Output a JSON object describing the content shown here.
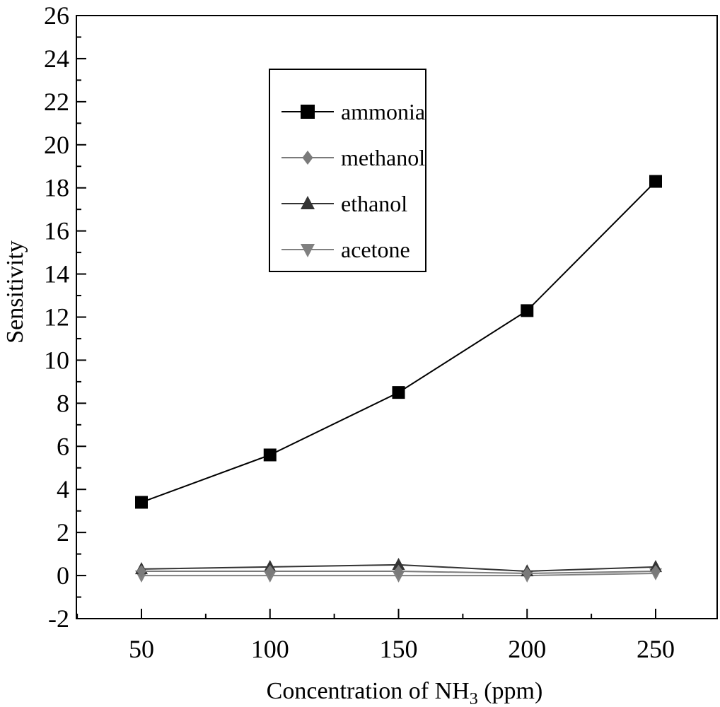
{
  "chart_data": {
    "type": "line",
    "xlabel_main": "Concentration of NH",
    "xlabel_sub": "3",
    "xlabel_tail": " (ppm)",
    "ylabel": "Sensitivity",
    "x": [
      50,
      100,
      150,
      200,
      250
    ],
    "xticks": [
      50,
      100,
      150,
      200,
      250
    ],
    "yticks": [
      -2,
      0,
      2,
      4,
      6,
      8,
      10,
      12,
      14,
      16,
      18,
      20,
      22,
      24,
      26
    ],
    "xlim": [
      25,
      275
    ],
    "ylim": [
      -2,
      26
    ],
    "grid": false,
    "legend_position": "top-center",
    "series": [
      {
        "name": "ammonia",
        "marker": "square",
        "color": "#000000",
        "values": [
          3.4,
          5.6,
          8.5,
          12.3,
          18.3
        ]
      },
      {
        "name": "methanol",
        "marker": "diamond",
        "color": "#7a7a7a",
        "values": [
          0.2,
          0.2,
          0.2,
          0.1,
          0.2
        ]
      },
      {
        "name": "ethanol",
        "marker": "triangle-up",
        "color": "#333333",
        "values": [
          0.3,
          0.4,
          0.5,
          0.2,
          0.4
        ]
      },
      {
        "name": "acetone",
        "marker": "triangle-down",
        "color": "#808080",
        "values": [
          0.0,
          0.0,
          0.0,
          0.0,
          0.1
        ]
      }
    ]
  }
}
